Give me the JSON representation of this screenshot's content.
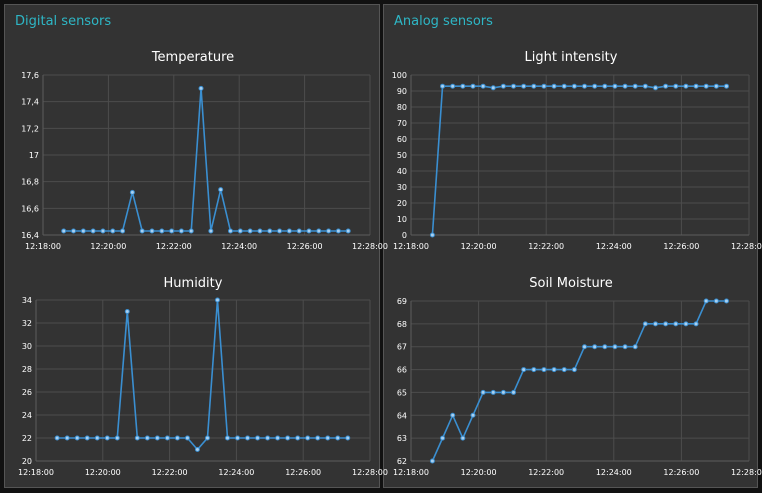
{
  "groups": {
    "digital": {
      "title": "Digital sensors"
    },
    "analog": {
      "title": "Analog sensors"
    }
  },
  "colors": {
    "line": "#3a8fd1",
    "point": "#a9d0f0",
    "group_title": "#2eb7c6"
  },
  "chart_data": [
    {
      "id": "temperature",
      "type": "line",
      "title": "Temperature",
      "x_ticks": [
        "12:18:00",
        "12:20:00",
        "12:22:00",
        "12:24:00",
        "12:26:00",
        "12:28:00"
      ],
      "x_range": [
        "12:18:00",
        "12:28:00"
      ],
      "y_ticks": [
        "16,4",
        "16,6",
        "16,8",
        "17",
        "17,2",
        "17,4",
        "17,6"
      ],
      "ylim": [
        16.4,
        17.6
      ],
      "grid": true,
      "series": [
        {
          "x": [
            "12:18:38",
            "12:18:56",
            "12:19:14",
            "12:19:32",
            "12:19:50",
            "12:20:08",
            "12:20:26",
            "12:20:44",
            "12:21:02",
            "12:21:20",
            "12:21:38",
            "12:21:56",
            "12:22:14",
            "12:22:32",
            "12:22:50",
            "12:23:08",
            "12:23:26",
            "12:23:44",
            "12:24:02",
            "12:24:20",
            "12:24:38",
            "12:24:56",
            "12:25:14",
            "12:25:32",
            "12:25:50",
            "12:26:08",
            "12:26:26",
            "12:26:44",
            "12:27:02",
            "12:27:20"
          ],
          "values": [
            16.43,
            16.43,
            16.43,
            16.43,
            16.43,
            16.43,
            16.43,
            16.72,
            16.43,
            16.43,
            16.43,
            16.43,
            16.43,
            16.43,
            17.5,
            16.43,
            16.74,
            16.43,
            16.43,
            16.43,
            16.43,
            16.43,
            16.43,
            16.43,
            16.43,
            16.43,
            16.43,
            16.43,
            16.43,
            16.43
          ]
        }
      ]
    },
    {
      "id": "humidity",
      "type": "line",
      "title": "Humidity",
      "x_ticks": [
        "12:18:00",
        "12:20:00",
        "12:22:00",
        "12:24:00",
        "12:26:00",
        "12:28:00"
      ],
      "x_range": [
        "12:18:00",
        "12:28:00"
      ],
      "y_ticks": [
        "20",
        "22",
        "24",
        "26",
        "28",
        "30",
        "32",
        "34"
      ],
      "ylim": [
        20,
        34
      ],
      "grid": true,
      "series": [
        {
          "x": [
            "12:18:38",
            "12:18:56",
            "12:19:14",
            "12:19:32",
            "12:19:50",
            "12:20:08",
            "12:20:26",
            "12:20:44",
            "12:21:02",
            "12:21:20",
            "12:21:38",
            "12:21:56",
            "12:22:14",
            "12:22:32",
            "12:22:50",
            "12:23:08",
            "12:23:26",
            "12:23:44",
            "12:24:02",
            "12:24:20",
            "12:24:38",
            "12:24:56",
            "12:25:14",
            "12:25:32",
            "12:25:50",
            "12:26:08",
            "12:26:26",
            "12:26:44",
            "12:27:02",
            "12:27:20"
          ],
          "values": [
            22,
            22,
            22,
            22,
            22,
            22,
            22,
            33,
            22,
            22,
            22,
            22,
            22,
            22,
            21,
            22,
            34,
            22,
            22,
            22,
            22,
            22,
            22,
            22,
            22,
            22,
            22,
            22,
            22,
            22
          ]
        }
      ]
    },
    {
      "id": "light",
      "type": "line",
      "title": "Light intensity",
      "x_ticks": [
        "12:18:00",
        "12:20:00",
        "12:22:00",
        "12:24:00",
        "12:26:00",
        "12:28:00"
      ],
      "x_range": [
        "12:18:00",
        "12:28:00"
      ],
      "y_ticks": [
        "0",
        "10",
        "20",
        "30",
        "40",
        "50",
        "60",
        "70",
        "80",
        "90",
        "100"
      ],
      "ylim": [
        0,
        100
      ],
      "grid": true,
      "series": [
        {
          "x": [
            "12:18:38",
            "12:18:56",
            "12:19:14",
            "12:19:32",
            "12:19:50",
            "12:20:08",
            "12:20:26",
            "12:20:44",
            "12:21:02",
            "12:21:20",
            "12:21:38",
            "12:21:56",
            "12:22:14",
            "12:22:32",
            "12:22:50",
            "12:23:08",
            "12:23:26",
            "12:23:44",
            "12:24:02",
            "12:24:20",
            "12:24:38",
            "12:24:56",
            "12:25:14",
            "12:25:32",
            "12:25:50",
            "12:26:08",
            "12:26:26",
            "12:26:44",
            "12:27:02",
            "12:27:20"
          ],
          "values": [
            0,
            93,
            93,
            93,
            93,
            93,
            92,
            93,
            93,
            93,
            93,
            93,
            93,
            93,
            93,
            93,
            93,
            93,
            93,
            93,
            93,
            93,
            92,
            93,
            93,
            93,
            93,
            93,
            93,
            93
          ]
        }
      ]
    },
    {
      "id": "soil",
      "type": "line",
      "title": "Soil Moisture",
      "x_ticks": [
        "12:18:00",
        "12:20:00",
        "12:22:00",
        "12:24:00",
        "12:26:00",
        "12:28:00"
      ],
      "x_range": [
        "12:18:00",
        "12:28:00"
      ],
      "y_ticks": [
        "62",
        "63",
        "64",
        "65",
        "66",
        "67",
        "68",
        "69"
      ],
      "ylim": [
        62,
        69
      ],
      "grid": true,
      "series": [
        {
          "x": [
            "12:18:38",
            "12:18:56",
            "12:19:14",
            "12:19:32",
            "12:19:50",
            "12:20:08",
            "12:20:26",
            "12:20:44",
            "12:21:02",
            "12:21:20",
            "12:21:38",
            "12:21:56",
            "12:22:14",
            "12:22:32",
            "12:22:50",
            "12:23:08",
            "12:23:26",
            "12:23:44",
            "12:24:02",
            "12:24:20",
            "12:24:38",
            "12:24:56",
            "12:25:14",
            "12:25:32",
            "12:25:50",
            "12:26:08",
            "12:26:26",
            "12:26:44",
            "12:27:02",
            "12:27:20"
          ],
          "values": [
            62,
            63,
            64,
            63,
            64,
            65,
            65,
            65,
            65,
            66,
            66,
            66,
            66,
            66,
            66,
            67,
            67,
            67,
            67,
            67,
            67,
            68,
            68,
            68,
            68,
            68,
            68,
            69,
            69,
            69
          ]
        }
      ]
    }
  ]
}
